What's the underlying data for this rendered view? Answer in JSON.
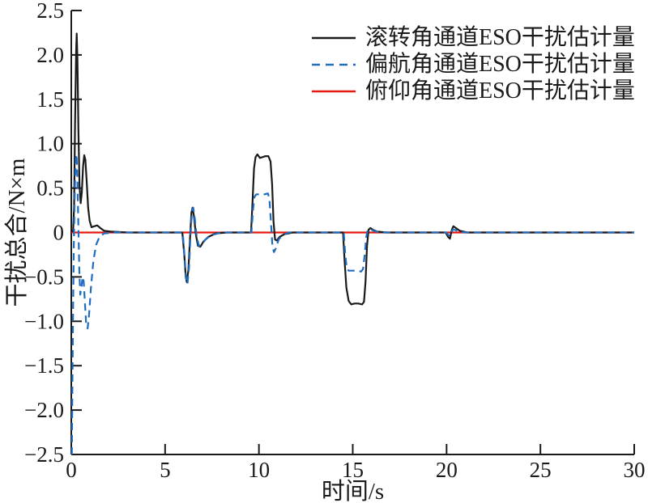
{
  "figure": {
    "background": "#ffffff",
    "axis_color": "#1a1a1a"
  },
  "chart_data": {
    "type": "line",
    "title": "",
    "xlabel": "时间/s",
    "ylabel": "干扰总合/N×m",
    "xlim": [
      0,
      30
    ],
    "ylim": [
      -2.5,
      2.5
    ],
    "grid": false,
    "legend_position": "top-right-inside",
    "x_ticks": [
      0,
      5,
      10,
      15,
      20,
      25,
      30
    ],
    "x_tick_labels": [
      "0",
      "5",
      "10",
      "15",
      "20",
      "25",
      "30"
    ],
    "y_ticks": [
      2.5,
      2.0,
      1.5,
      1.0,
      0.5,
      0,
      -0.5,
      -1.0,
      -1.5,
      -2.0,
      -2.5
    ],
    "y_tick_labels": [
      "2.5",
      "2.0",
      "1.5",
      "1.0",
      "0.5",
      "0",
      "−0.5",
      "−1.0",
      "−1.5",
      "−2.0",
      "−2.5"
    ],
    "draw_order": [
      2,
      0,
      1
    ],
    "series": [
      {
        "name": "滚转角通道ESO干扰估计量",
        "color": "#1a1a1a",
        "style": "solid",
        "points": [
          [
            0,
            0.01
          ],
          [
            0.1,
            0.02
          ],
          [
            0.15,
            0.3
          ],
          [
            0.2,
            1.2
          ],
          [
            0.26,
            2.05
          ],
          [
            0.29,
            2.24
          ],
          [
            0.33,
            1.95
          ],
          [
            0.38,
            1.15
          ],
          [
            0.44,
            0.52
          ],
          [
            0.5,
            0.33
          ],
          [
            0.56,
            0.45
          ],
          [
            0.63,
            0.75
          ],
          [
            0.69,
            0.87
          ],
          [
            0.75,
            0.82
          ],
          [
            0.82,
            0.58
          ],
          [
            0.9,
            0.28
          ],
          [
            0.98,
            0.13
          ],
          [
            1.08,
            0.06
          ],
          [
            1.22,
            0.07
          ],
          [
            1.38,
            0.08
          ],
          [
            1.55,
            0.05
          ],
          [
            1.75,
            0.02
          ],
          [
            2.1,
            0.01
          ],
          [
            3,
            0
          ],
          [
            5.92,
            0
          ],
          [
            6.02,
            -0.25
          ],
          [
            6.1,
            -0.5
          ],
          [
            6.16,
            -0.56
          ],
          [
            6.24,
            -0.42
          ],
          [
            6.32,
            -0.1
          ],
          [
            6.4,
            0.22
          ],
          [
            6.46,
            0.28
          ],
          [
            6.54,
            0.18
          ],
          [
            6.64,
            -0.02
          ],
          [
            6.75,
            -0.15
          ],
          [
            6.88,
            -0.16
          ],
          [
            7.05,
            -0.1
          ],
          [
            7.3,
            -0.05
          ],
          [
            7.7,
            -0.01
          ],
          [
            8.3,
            0
          ],
          [
            9.58,
            0
          ],
          [
            9.66,
            0.35
          ],
          [
            9.74,
            0.72
          ],
          [
            9.82,
            0.85
          ],
          [
            9.92,
            0.88
          ],
          [
            10.05,
            0.84
          ],
          [
            10.2,
            0.85
          ],
          [
            10.35,
            0.86
          ],
          [
            10.5,
            0.86
          ],
          [
            10.62,
            0.8
          ],
          [
            10.7,
            0.55
          ],
          [
            10.78,
            0.12
          ],
          [
            10.86,
            -0.08
          ],
          [
            10.95,
            -0.09
          ],
          [
            11.1,
            -0.05
          ],
          [
            11.35,
            -0.02
          ],
          [
            11.8,
            0
          ],
          [
            14.48,
            0
          ],
          [
            14.56,
            -0.3
          ],
          [
            14.66,
            -0.62
          ],
          [
            14.78,
            -0.77
          ],
          [
            14.92,
            -0.81
          ],
          [
            15.1,
            -0.8
          ],
          [
            15.3,
            -0.8
          ],
          [
            15.5,
            -0.81
          ],
          [
            15.6,
            -0.78
          ],
          [
            15.68,
            -0.55
          ],
          [
            15.76,
            -0.15
          ],
          [
            15.84,
            0.03
          ],
          [
            15.94,
            0.05
          ],
          [
            16.08,
            0.03
          ],
          [
            16.3,
            0.01
          ],
          [
            16.8,
            0
          ],
          [
            19.95,
            0
          ],
          [
            20.08,
            -0.05
          ],
          [
            20.18,
            -0.07
          ],
          [
            20.28,
            0.03
          ],
          [
            20.36,
            0.07
          ],
          [
            20.5,
            0.05
          ],
          [
            20.7,
            0.02
          ],
          [
            21.1,
            0
          ],
          [
            30,
            0
          ]
        ]
      },
      {
        "name": "偏航角通道ESO干扰估计量",
        "color": "#1f6cc0",
        "style": "dashed",
        "points": [
          [
            0.03,
            -2.5
          ],
          [
            0.06,
            -1.7
          ],
          [
            0.1,
            -0.8
          ],
          [
            0.14,
            -0.1
          ],
          [
            0.19,
            0.5
          ],
          [
            0.24,
            0.82
          ],
          [
            0.28,
            0.88
          ],
          [
            0.33,
            0.6
          ],
          [
            0.38,
            0.05
          ],
          [
            0.43,
            -0.45
          ],
          [
            0.48,
            -0.7
          ],
          [
            0.54,
            -0.62
          ],
          [
            0.6,
            -0.5
          ],
          [
            0.66,
            -0.55
          ],
          [
            0.73,
            -0.8
          ],
          [
            0.8,
            -1.05
          ],
          [
            0.87,
            -1.08
          ],
          [
            0.95,
            -0.92
          ],
          [
            1.05,
            -0.62
          ],
          [
            1.18,
            -0.32
          ],
          [
            1.32,
            -0.14
          ],
          [
            1.5,
            -0.05
          ],
          [
            1.75,
            -0.01
          ],
          [
            2.3,
            0
          ],
          [
            5.94,
            0
          ],
          [
            6.04,
            -0.28
          ],
          [
            6.12,
            -0.52
          ],
          [
            6.19,
            -0.58
          ],
          [
            6.27,
            -0.4
          ],
          [
            6.35,
            -0.05
          ],
          [
            6.43,
            0.24
          ],
          [
            6.5,
            0.28
          ],
          [
            6.58,
            0.16
          ],
          [
            6.68,
            -0.04
          ],
          [
            6.8,
            -0.15
          ],
          [
            6.95,
            -0.14
          ],
          [
            7.15,
            -0.08
          ],
          [
            7.45,
            -0.03
          ],
          [
            8.0,
            0
          ],
          [
            9.6,
            0
          ],
          [
            9.68,
            0.25
          ],
          [
            9.76,
            0.4
          ],
          [
            9.86,
            0.43
          ],
          [
            10.1,
            0.43
          ],
          [
            10.3,
            0.43
          ],
          [
            10.48,
            0.44
          ],
          [
            10.56,
            0.38
          ],
          [
            10.64,
            0.12
          ],
          [
            10.72,
            -0.15
          ],
          [
            10.8,
            -0.22
          ],
          [
            10.9,
            -0.18
          ],
          [
            11.05,
            -0.08
          ],
          [
            11.25,
            -0.03
          ],
          [
            11.6,
            0
          ],
          [
            14.52,
            0
          ],
          [
            14.6,
            -0.25
          ],
          [
            14.68,
            -0.4
          ],
          [
            14.78,
            -0.43
          ],
          [
            15.0,
            -0.43
          ],
          [
            15.25,
            -0.43
          ],
          [
            15.45,
            -0.44
          ],
          [
            15.55,
            -0.41
          ],
          [
            15.64,
            -0.25
          ],
          [
            15.72,
            -0.05
          ],
          [
            15.8,
            0.03
          ],
          [
            15.92,
            0.04
          ],
          [
            16.1,
            0.02
          ],
          [
            16.45,
            0
          ],
          [
            19.98,
            0
          ],
          [
            20.1,
            -0.03
          ],
          [
            20.2,
            -0.04
          ],
          [
            20.32,
            0.03
          ],
          [
            20.45,
            0.03
          ],
          [
            20.65,
            0.01
          ],
          [
            21,
            0
          ],
          [
            30,
            0
          ]
        ]
      },
      {
        "name": "俯仰角通道ESO干扰估计量",
        "color": "#e8180e",
        "style": "solid",
        "points": [
          [
            0,
            0
          ],
          [
            30,
            0
          ]
        ]
      }
    ]
  }
}
